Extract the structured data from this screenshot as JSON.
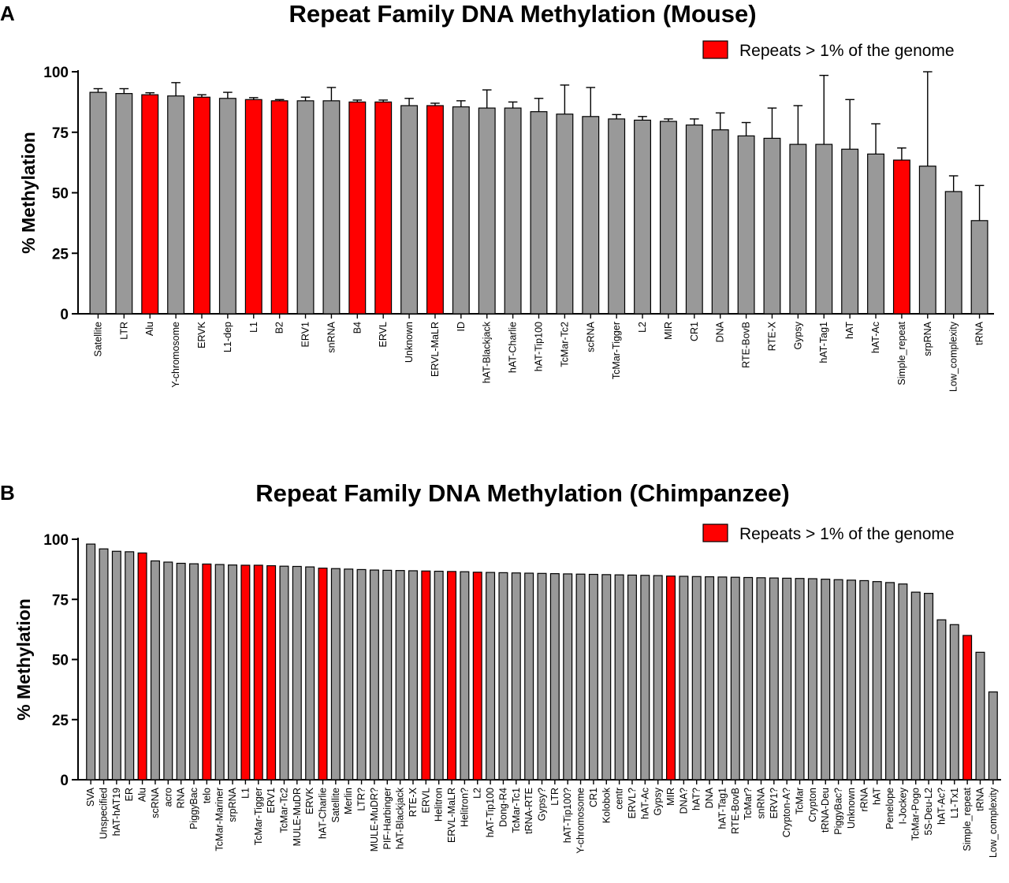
{
  "chart_data": [
    {
      "panel": "A",
      "type": "bar",
      "title": "Repeat Family DNA Methylation (Mouse)",
      "xlabel": "",
      "ylabel": "% Methylation",
      "ylim": [
        0,
        100
      ],
      "yticks": [
        0,
        25,
        50,
        75,
        100
      ],
      "legend": {
        "label": "Repeats > 1% of the genome",
        "color": "#ff0000",
        "position": "top-right"
      },
      "colors": {
        "normal": "#999999",
        "highlight": "#ff0000"
      },
      "grid": false,
      "categories": [
        "Satellite",
        "LTR",
        "Alu",
        "Y-chromosome",
        "ERVK",
        "L1-dep",
        "L1",
        "B2",
        "ERV1",
        "snRNA",
        "B4",
        "ERVL",
        "Unknown",
        "ERVL-MaLR",
        "ID",
        "hAT-Blackjack",
        "hAT-Charlie",
        "hAT-Tip100",
        "TcMar-Tc2",
        "scRNA",
        "TcMar-Tigger",
        "L2",
        "MIR",
        "CR1",
        "DNA",
        "RTE-BovB",
        "RTE-X",
        "Gypsy",
        "hAT-Tag1",
        "hAT",
        "hAT-Ac",
        "Simple_repeat",
        "srpRNA",
        "Low_complexity",
        "tRNA"
      ],
      "values": [
        91.5,
        91,
        90.5,
        90,
        89.5,
        89,
        88.5,
        88,
        88,
        88,
        87.5,
        87.5,
        86,
        86,
        85.5,
        85,
        85,
        83.5,
        82.5,
        81.5,
        80.5,
        80,
        79.5,
        78,
        76,
        73.5,
        72.5,
        70,
        70,
        68,
        66,
        63.5,
        61,
        50.5,
        38.5
      ],
      "errors": [
        1.5,
        2,
        0.8,
        5.5,
        1,
        2.5,
        0.8,
        0.5,
        1.5,
        5.5,
        0.8,
        0.8,
        3,
        1,
        2.5,
        7.5,
        2.5,
        5.5,
        12,
        12,
        1.8,
        1.5,
        1,
        2.5,
        7,
        5.5,
        12.5,
        16,
        28.5,
        20.5,
        12.5,
        5,
        39,
        6.5,
        14.5
      ],
      "highlighted": [
        false,
        false,
        true,
        false,
        true,
        false,
        true,
        true,
        false,
        false,
        true,
        true,
        false,
        true,
        false,
        false,
        false,
        false,
        false,
        false,
        false,
        false,
        false,
        false,
        false,
        false,
        false,
        false,
        false,
        false,
        false,
        true,
        false,
        false,
        false
      ]
    },
    {
      "panel": "B",
      "type": "bar",
      "title": "Repeat Family DNA Methylation (Chimpanzee)",
      "xlabel": "",
      "ylabel": "% Methylation",
      "ylim": [
        0,
        100
      ],
      "yticks": [
        0,
        25,
        50,
        75,
        100
      ],
      "legend": {
        "label": "Repeats > 1% of the genome",
        "color": "#ff0000",
        "position": "top-right"
      },
      "colors": {
        "normal": "#999999",
        "highlight": "#ff0000"
      },
      "grid": false,
      "categories": [
        "SVA",
        "Unspecified",
        "hAT-hAT19",
        "ER",
        "Alu",
        "scRNA",
        "acro",
        "RNA",
        "PiggyBac",
        "telo",
        "TcMar-Mariner",
        "srpRNA",
        "L1",
        "TcMar-Tigger",
        "ERV1",
        "TcMar-Tc2",
        "MULE-MuDR",
        "ERVK",
        "hAT-Charlie",
        "Satellite",
        "Merlin",
        "LTR?",
        "MULE-MuDR?",
        "PIF-Harbinger",
        "hAT-Blackjack",
        "RTE-X",
        "ERVL",
        "Helitron",
        "ERVL-MaLR",
        "Helitron?",
        "L2",
        "hAT-Tip100",
        "Dong-R4",
        "TcMar-Tc1",
        "tRNA-RTE",
        "Gypsy?",
        "LTR",
        "hAT-Tip100?",
        "Y-chromosome",
        "CR1",
        "Kolobok",
        "centr",
        "ERVL?",
        "hAT-Ac",
        "Gypsy",
        "MIR",
        "DNA?",
        "hAT?",
        "DNA",
        "hAT-Tag1",
        "RTE-BovB",
        "TcMar?",
        "snRNA",
        "ERV1?",
        "Crypton-A?",
        "TcMar",
        "Crypton",
        "tRNA-Deu",
        "PiggyBac?",
        "Unknown",
        "rRNA",
        "hAT",
        "Penelope",
        "I-Jockey",
        "TcMar-Pogo",
        "5S-Deu-L2",
        "hAT-Ac?",
        "L1-Tx1",
        "Simple_repeat",
        "tRNA",
        "Low_complexity"
      ],
      "values": [
        98,
        96,
        95,
        94.8,
        94.3,
        91,
        90.5,
        90,
        89.8,
        89.7,
        89.5,
        89.3,
        89.2,
        89.2,
        89,
        88.8,
        88.7,
        88.5,
        88,
        87.8,
        87.6,
        87.4,
        87.2,
        87.1,
        87,
        86.9,
        86.8,
        86.7,
        86.6,
        86.5,
        86.3,
        86.2,
        86.1,
        86,
        85.9,
        85.8,
        85.7,
        85.6,
        85.5,
        85.4,
        85.3,
        85.2,
        85.1,
        85,
        84.9,
        84.7,
        84.6,
        84.5,
        84.4,
        84.3,
        84.2,
        84.1,
        84,
        83.9,
        83.8,
        83.7,
        83.6,
        83.4,
        83.2,
        83,
        82.8,
        82.4,
        82,
        81.4,
        78,
        77.5,
        66.5,
        64.5,
        60,
        53,
        36.5
      ],
      "highlighted": [
        false,
        false,
        false,
        false,
        true,
        false,
        false,
        false,
        false,
        true,
        false,
        false,
        true,
        true,
        true,
        false,
        false,
        false,
        true,
        false,
        false,
        false,
        false,
        false,
        false,
        false,
        true,
        false,
        true,
        false,
        true,
        false,
        false,
        false,
        false,
        false,
        false,
        false,
        false,
        false,
        false,
        false,
        false,
        false,
        false,
        true,
        false,
        false,
        false,
        false,
        false,
        false,
        false,
        false,
        false,
        false,
        false,
        false,
        false,
        false,
        false,
        false,
        false,
        false,
        false,
        false,
        false,
        false,
        true,
        false,
        false
      ]
    }
  ]
}
